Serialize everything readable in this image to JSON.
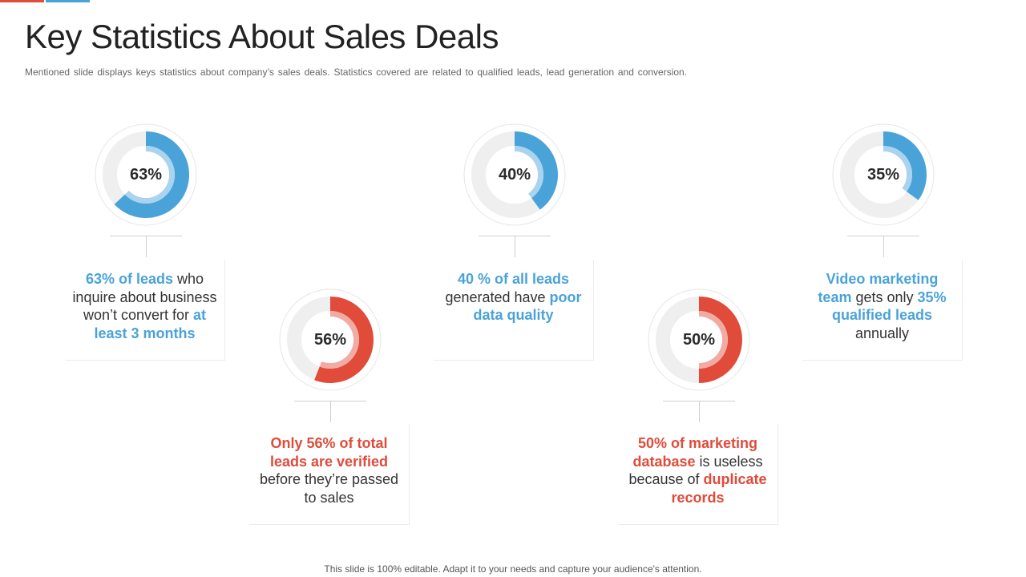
{
  "title": "Key Statistics About Sales Deals",
  "subtitle": "Mentioned slide displays keys statistics about company’s sales deals. Statistics covered are related to qualified leads, lead generation and conversion.",
  "footer": "This slide is 100% editable. Adapt it to your needs and capture your audience's attention.",
  "colors": {
    "blue": "#4aa3d8",
    "blue_light": "#a9d3ee",
    "red": "#e04b3a",
    "red_light": "#f1aba2",
    "track": "#efefef"
  },
  "stats": [
    {
      "percent_label": "63%",
      "value": 63,
      "color": "blue",
      "text": {
        "p1": "63% of leads",
        "p2": " who inquire about business won’t convert for ",
        "p3": "at least 3 months",
        "p4": ""
      }
    },
    {
      "percent_label": "56%",
      "value": 56,
      "color": "red",
      "text": {
        "p1": "Only 56% of total leads are verified",
        "p2": " before they’re passed to sales",
        "p3": "",
        "p4": ""
      }
    },
    {
      "percent_label": "40%",
      "value": 40,
      "color": "blue",
      "text": {
        "p1": "40 % of all leads",
        "p2": " generated have ",
        "p3": "poor data quality",
        "p4": ""
      }
    },
    {
      "percent_label": "50%",
      "value": 50,
      "color": "red",
      "text": {
        "p1": "50% of marketing database",
        "p2": " is useless because of ",
        "p3": "duplicate records",
        "p4": ""
      }
    },
    {
      "percent_label": "35%",
      "value": 35,
      "color": "blue",
      "text": {
        "p1": "Video marketing team",
        "p2": " gets only ",
        "p3": "35% qualified leads",
        "p4": " annually"
      }
    }
  ]
}
